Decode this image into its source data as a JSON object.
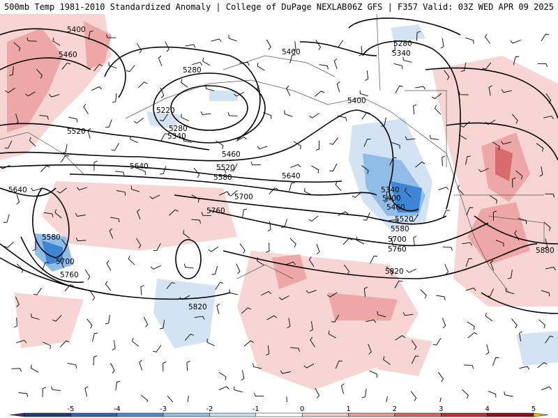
{
  "header": {
    "left": "500mb Temp 1981-2010 Standardized Anomaly | College of DuPage NEXLAB",
    "right": "06Z GFS | F357 Valid: 03Z WED APR 09 2025"
  },
  "contour_labels": [
    "5400",
    "5460",
    "5520",
    "5640",
    "5280",
    "5220",
    "5280",
    "5340",
    "5400",
    "5280",
    "5340",
    "5400",
    "5460",
    "5520",
    "5580",
    "5640",
    "5700",
    "5760",
    "5640",
    "5580",
    "5700",
    "5760",
    "5820",
    "5340",
    "5400",
    "5460",
    "5520",
    "5580",
    "5700",
    "5760",
    "5820",
    "5880"
  ],
  "colorbar": {
    "ticks": [
      "-5",
      "-4",
      "-3",
      "-2",
      "-1",
      "0",
      "1",
      "2",
      "3",
      "4",
      "5"
    ],
    "colors": [
      "#4b2c8a",
      "#1f3a75",
      "#2b66b8",
      "#4b8fd6",
      "#93bfe8",
      "#c6dcf1",
      "#ffffff",
      "#f4c9c6",
      "#e89a98",
      "#d8656b",
      "#b8323a",
      "#8b0f1c",
      "#f5c000"
    ]
  },
  "anomaly_colors": {
    "light_red": "#f6d5d3",
    "med_red": "#eda7a6",
    "dark_red": "#d86b6e",
    "light_blue": "#d3e3f3",
    "med_blue": "#8fbde8",
    "dark_blue": "#3d86d4"
  }
}
